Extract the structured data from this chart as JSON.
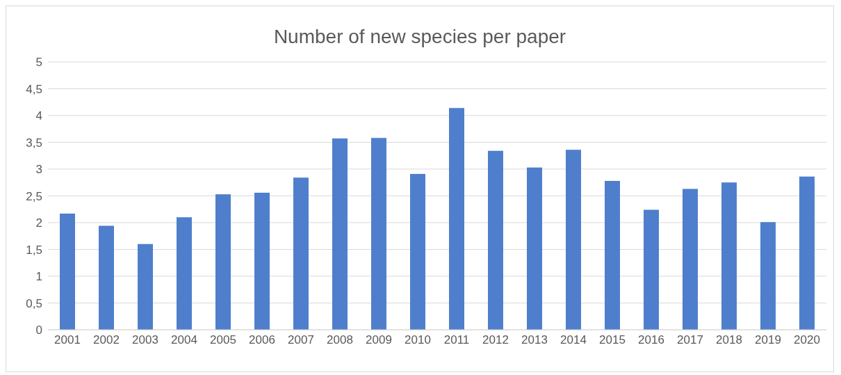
{
  "chart_data": {
    "type": "bar",
    "title": "Number of new species per paper",
    "categories": [
      "2001",
      "2002",
      "2003",
      "2004",
      "2005",
      "2006",
      "2007",
      "2008",
      "2009",
      "2010",
      "2011",
      "2012",
      "2013",
      "2014",
      "2015",
      "2016",
      "2017",
      "2018",
      "2019",
      "2020"
    ],
    "values": [
      2.17,
      1.94,
      1.6,
      2.1,
      2.53,
      2.56,
      2.84,
      3.57,
      3.58,
      2.91,
      4.14,
      3.34,
      3.03,
      3.36,
      2.78,
      2.24,
      2.63,
      2.75,
      2.01,
      2.86
    ],
    "color": "#4f7fcc",
    "ylim": [
      0,
      5
    ],
    "yticks": [
      0,
      {
        "value": 0.5,
        "label": "0,5"
      },
      1,
      {
        "value": 1.5,
        "label": "1,5"
      },
      2,
      {
        "value": 2.5,
        "label": "2,5"
      },
      3,
      {
        "value": 3.5,
        "label": "3,5"
      },
      4,
      {
        "value": 4.5,
        "label": "4,5"
      },
      5
    ],
    "grid": "y"
  }
}
